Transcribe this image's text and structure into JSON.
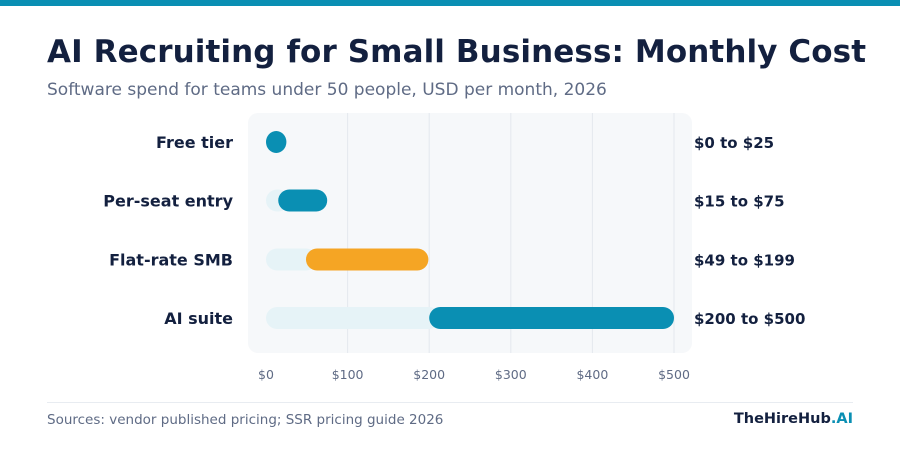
{
  "header": {
    "title": "AI Recruiting for Small Business: Monthly Cost",
    "subtitle": "Software spend for teams under 50 people, USD per month, 2026"
  },
  "footer": {
    "source": "Sources: vendor published pricing; SSR pricing guide 2026",
    "brand_main": "TheHireHub",
    "brand_accent": ".AI"
  },
  "colors": {
    "accent": "#0a8fb3",
    "highlight": "#f5a524",
    "track": "#e6f3f7",
    "panel": "#f6f8fa",
    "gridline": "#e4e8ee",
    "text_dark": "#13203f",
    "text_muted": "#5f6b85"
  },
  "chart_data": {
    "type": "bar",
    "orientation": "horizontal-range",
    "categories": [
      "Free tier",
      "Per-seat entry",
      "Flat-rate SMB",
      "AI suite"
    ],
    "ranges": [
      [
        0,
        25
      ],
      [
        15,
        75
      ],
      [
        49,
        199
      ],
      [
        200,
        500
      ]
    ],
    "range_labels": [
      "$0 to $25",
      "$15 to $75",
      "$49 to $199",
      "$200 to $500"
    ],
    "highlight_index": 2,
    "xlim": [
      0,
      500
    ],
    "x_ticks": [
      0,
      100,
      200,
      300,
      400,
      500
    ],
    "x_tick_labels": [
      "$0",
      "$100",
      "$200",
      "$300",
      "$400",
      "$500"
    ],
    "grid": true,
    "legend": "none"
  }
}
